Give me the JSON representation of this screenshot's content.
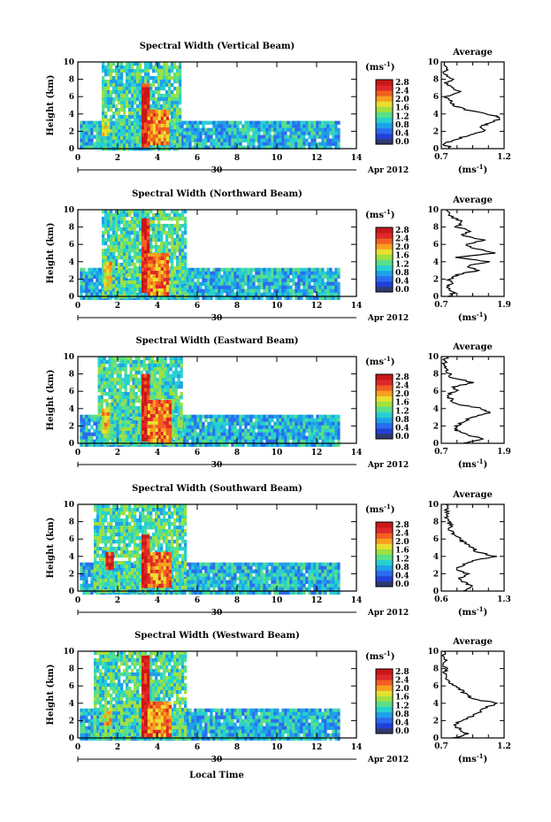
{
  "xlabel_bottom": "Local Time",
  "colorbar": {
    "unit": "(ms",
    "unit_exp": "-1",
    "tick_labels": [
      "2.8",
      "2.4",
      "2.0",
      "1.6",
      "1.2",
      "0.8",
      "0.4",
      "0.0"
    ],
    "colors": [
      "#303a6e",
      "#2240d8",
      "#2a6cf0",
      "#1fa0e8",
      "#28d0d0",
      "#58e08a",
      "#a0e040",
      "#e8e030",
      "#f8a020",
      "#f06020",
      "#e02828",
      "#c81818"
    ]
  },
  "chart_data": [
    {
      "type": "heatmap",
      "title": "Spectral Width (Vertical Beam)",
      "ylabel": "Height (km)",
      "ylim": [
        0,
        10
      ],
      "xlim": [
        0,
        14
      ],
      "x_ticks": [
        "0",
        "2",
        "4",
        "6",
        "8",
        "10",
        "12",
        "14"
      ],
      "y_ticks": [
        "0",
        "2",
        "4",
        "6",
        "8",
        "10"
      ],
      "date_day": "30",
      "date_label": "Apr 2012",
      "zlim": [
        0.0,
        3.0
      ],
      "features": [
        {
          "name": "boundary layer",
          "x": [
            0.1,
            13.1
          ],
          "y": [
            0,
            3.2
          ],
          "level": 1.0
        },
        {
          "name": "convective column",
          "x": [
            1.2,
            5.2
          ],
          "y": [
            0,
            10
          ],
          "level": 1.2
        },
        {
          "name": "core",
          "x": [
            3.2,
            3.5
          ],
          "y": [
            0.5,
            7.5
          ],
          "level": 2.8
        },
        {
          "name": "cell",
          "x": [
            3.5,
            4.5
          ],
          "y": [
            0.5,
            4.5
          ],
          "level": 2.2
        },
        {
          "name": "left cell",
          "x": [
            1.2,
            1.6
          ],
          "y": [
            1.5,
            3.5
          ],
          "level": 1.8
        }
      ],
      "average": {
        "label": "Average",
        "xlim": [
          0.7,
          1.2
        ],
        "x_ticks": [
          "0.7",
          "1.2"
        ],
        "xlabel": "(ms",
        "xlabel_exp": "-1",
        "profile": [
          [
            0.78,
            0.0
          ],
          [
            0.72,
            0.6
          ],
          [
            0.8,
            1.0
          ],
          [
            0.9,
            1.5
          ],
          [
            1.05,
            2.0
          ],
          [
            1.02,
            2.6
          ],
          [
            1.1,
            3.0
          ],
          [
            1.18,
            3.6
          ],
          [
            1.06,
            4.0
          ],
          [
            0.9,
            4.5
          ],
          [
            0.8,
            5.0
          ],
          [
            0.76,
            5.6
          ],
          [
            0.74,
            6.0
          ],
          [
            0.86,
            6.5
          ],
          [
            0.78,
            7.0
          ],
          [
            0.74,
            7.6
          ],
          [
            0.8,
            8.0
          ],
          [
            0.72,
            8.6
          ],
          [
            0.74,
            9.2
          ],
          [
            0.72,
            10.0
          ]
        ]
      }
    },
    {
      "type": "heatmap",
      "title": "Spectral Width (Northward Beam)",
      "ylabel": "Height (km)",
      "ylim": [
        0,
        10
      ],
      "xlim": [
        0,
        14
      ],
      "x_ticks": [
        "0",
        "2",
        "4",
        "6",
        "8",
        "10",
        "12",
        "14"
      ],
      "y_ticks": [
        "0",
        "2",
        "4",
        "6",
        "8",
        "10"
      ],
      "date_day": "30",
      "date_label": "Apr 2012",
      "zlim": [
        0.0,
        3.0
      ],
      "features": [
        {
          "name": "boundary layer",
          "x": [
            0.1,
            13.1
          ],
          "y": [
            0,
            3.3
          ],
          "level": 1.0
        },
        {
          "name": "convective column",
          "x": [
            1.2,
            5.4
          ],
          "y": [
            0,
            10
          ],
          "level": 1.3
        },
        {
          "name": "core",
          "x": [
            3.2,
            3.5
          ],
          "y": [
            0.5,
            9.0
          ],
          "level": 2.7
        },
        {
          "name": "cell",
          "x": [
            3.5,
            4.5
          ],
          "y": [
            0.5,
            5.0
          ],
          "level": 2.3
        },
        {
          "name": "left cell",
          "x": [
            1.3,
            1.7
          ],
          "y": [
            1.0,
            4.0
          ],
          "level": 1.9
        }
      ],
      "average": {
        "label": "Average",
        "xlim": [
          0.7,
          1.9
        ],
        "x_ticks": [
          "0.7",
          "1.9"
        ],
        "xlabel": "(ms",
        "xlabel_exp": "-1",
        "profile": [
          [
            0.85,
            0.0
          ],
          [
            0.95,
            0.5
          ],
          [
            0.8,
            1.0
          ],
          [
            0.9,
            1.5
          ],
          [
            0.85,
            2.0
          ],
          [
            1.0,
            2.5
          ],
          [
            1.4,
            3.0
          ],
          [
            1.2,
            3.5
          ],
          [
            1.6,
            4.0
          ],
          [
            1.0,
            4.5
          ],
          [
            1.7,
            5.0
          ],
          [
            1.3,
            5.6
          ],
          [
            1.2,
            6.0
          ],
          [
            1.5,
            6.5
          ],
          [
            1.1,
            7.0
          ],
          [
            1.25,
            7.6
          ],
          [
            1.0,
            8.0
          ],
          [
            1.1,
            8.6
          ],
          [
            0.9,
            9.2
          ],
          [
            0.8,
            10.0
          ]
        ]
      }
    },
    {
      "type": "heatmap",
      "title": "Spectral Width (Eastward Beam)",
      "ylabel": "Height (km)",
      "ylim": [
        0,
        10
      ],
      "xlim": [
        0,
        14
      ],
      "x_ticks": [
        "0",
        "2",
        "4",
        "6",
        "8",
        "10",
        "12",
        "14"
      ],
      "y_ticks": [
        "0",
        "2",
        "4",
        "6",
        "8",
        "10"
      ],
      "date_day": "30",
      "date_label": "Apr 2012",
      "zlim": [
        0.0,
        3.0
      ],
      "features": [
        {
          "name": "boundary layer",
          "x": [
            0.1,
            13.1
          ],
          "y": [
            0,
            3.3
          ],
          "level": 1.0
        },
        {
          "name": "convective column",
          "x": [
            1.0,
            5.2
          ],
          "y": [
            0,
            10
          ],
          "level": 1.3
        },
        {
          "name": "core",
          "x": [
            3.2,
            3.5
          ],
          "y": [
            0.5,
            8.0
          ],
          "level": 2.8
        },
        {
          "name": "cell",
          "x": [
            3.5,
            4.6
          ],
          "y": [
            0.5,
            5.0
          ],
          "level": 2.3
        },
        {
          "name": "left cell",
          "x": [
            1.2,
            1.6
          ],
          "y": [
            1.5,
            4.0
          ],
          "level": 1.9
        }
      ],
      "average": {
        "label": "Average",
        "xlim": [
          0.7,
          1.9
        ],
        "x_ticks": [
          "0.7",
          "1.9"
        ],
        "xlabel": "(ms",
        "xlabel_exp": "-1",
        "profile": [
          [
            1.1,
            0.0
          ],
          [
            1.5,
            0.5
          ],
          [
            1.2,
            1.0
          ],
          [
            1.0,
            1.5
          ],
          [
            1.0,
            2.0
          ],
          [
            1.1,
            2.5
          ],
          [
            1.3,
            3.0
          ],
          [
            1.6,
            3.5
          ],
          [
            1.5,
            4.0
          ],
          [
            1.0,
            4.5
          ],
          [
            0.9,
            5.0
          ],
          [
            0.8,
            5.6
          ],
          [
            1.0,
            6.0
          ],
          [
            0.9,
            6.5
          ],
          [
            1.3,
            7.0
          ],
          [
            0.9,
            7.6
          ],
          [
            0.85,
            8.0
          ],
          [
            0.8,
            8.6
          ],
          [
            0.75,
            9.2
          ],
          [
            0.8,
            10.0
          ]
        ]
      }
    },
    {
      "type": "heatmap",
      "title": "Spectral Width (Southward Beam)",
      "ylabel": "Height (km)",
      "ylim": [
        0,
        10
      ],
      "xlim": [
        0,
        14
      ],
      "x_ticks": [
        "0",
        "2",
        "4",
        "6",
        "8",
        "10",
        "12",
        "14"
      ],
      "y_ticks": [
        "0",
        "2",
        "4",
        "6",
        "8",
        "10"
      ],
      "date_day": "30",
      "date_label": "Apr 2012",
      "zlim": [
        0.0,
        3.0
      ],
      "features": [
        {
          "name": "boundary layer",
          "x": [
            0.1,
            13.1
          ],
          "y": [
            0,
            3.3
          ],
          "level": 1.0
        },
        {
          "name": "convective column",
          "x": [
            0.8,
            5.4
          ],
          "y": [
            0,
            10
          ],
          "level": 1.3
        },
        {
          "name": "core",
          "x": [
            3.2,
            3.5
          ],
          "y": [
            0.5,
            6.5
          ],
          "level": 2.8
        },
        {
          "name": "cell",
          "x": [
            3.5,
            4.6
          ],
          "y": [
            0.5,
            4.5
          ],
          "level": 2.3
        },
        {
          "name": "left cell",
          "x": [
            1.4,
            1.8
          ],
          "y": [
            2.5,
            4.5
          ],
          "level": 2.6
        }
      ],
      "average": {
        "label": "Average",
        "xlim": [
          0.6,
          1.3
        ],
        "x_ticks": [
          "0.6",
          "1.3"
        ],
        "xlabel": "(ms",
        "xlabel_exp": "-1",
        "profile": [
          [
            0.85,
            0.0
          ],
          [
            0.95,
            0.5
          ],
          [
            0.85,
            1.0
          ],
          [
            0.8,
            1.5
          ],
          [
            0.9,
            2.0
          ],
          [
            0.75,
            2.5
          ],
          [
            0.85,
            3.0
          ],
          [
            0.95,
            3.5
          ],
          [
            1.2,
            4.0
          ],
          [
            1.0,
            4.5
          ],
          [
            0.95,
            5.0
          ],
          [
            0.85,
            5.6
          ],
          [
            0.8,
            6.0
          ],
          [
            0.75,
            6.5
          ],
          [
            0.7,
            7.0
          ],
          [
            0.7,
            7.6
          ],
          [
            0.68,
            8.0
          ],
          [
            0.65,
            8.6
          ],
          [
            0.66,
            9.2
          ],
          [
            0.65,
            10.0
          ]
        ]
      }
    },
    {
      "type": "heatmap",
      "title": "Spectral Width (Westward Beam)",
      "ylabel": "Height (km)",
      "ylim": [
        0,
        10
      ],
      "xlim": [
        0,
        14
      ],
      "x_ticks": [
        "0",
        "2",
        "4",
        "6",
        "8",
        "10",
        "12",
        "14"
      ],
      "y_ticks": [
        "0",
        "2",
        "4",
        "6",
        "8",
        "10"
      ],
      "date_day": "30",
      "date_label": "Apr 2012",
      "zlim": [
        0.0,
        3.0
      ],
      "features": [
        {
          "name": "boundary layer",
          "x": [
            0.1,
            13.1
          ],
          "y": [
            0,
            3.4
          ],
          "level": 1.0
        },
        {
          "name": "convective column",
          "x": [
            0.8,
            5.4
          ],
          "y": [
            0,
            10
          ],
          "level": 1.3
        },
        {
          "name": "core",
          "x": [
            3.2,
            3.5
          ],
          "y": [
            0.5,
            9.5
          ],
          "level": 2.8
        },
        {
          "name": "cell",
          "x": [
            3.5,
            4.6
          ],
          "y": [
            0.5,
            4.2
          ],
          "level": 2.2
        },
        {
          "name": "left cell",
          "x": [
            1.3,
            1.7
          ],
          "y": [
            1.5,
            3.5
          ],
          "level": 1.9
        }
      ],
      "average": {
        "label": "Average",
        "xlim": [
          0.7,
          1.2
        ],
        "x_ticks": [
          "0.7",
          "1.2"
        ],
        "xlabel": "(ms",
        "xlabel_exp": "-1",
        "profile": [
          [
            0.8,
            0.0
          ],
          [
            0.9,
            0.5
          ],
          [
            0.85,
            1.0
          ],
          [
            0.8,
            1.5
          ],
          [
            0.85,
            2.0
          ],
          [
            0.95,
            2.5
          ],
          [
            1.0,
            3.0
          ],
          [
            1.05,
            3.5
          ],
          [
            1.15,
            4.0
          ],
          [
            0.95,
            4.5
          ],
          [
            0.9,
            5.0
          ],
          [
            0.85,
            5.6
          ],
          [
            0.8,
            6.0
          ],
          [
            0.76,
            6.5
          ],
          [
            0.74,
            7.0
          ],
          [
            0.72,
            7.6
          ],
          [
            0.74,
            8.0
          ],
          [
            0.72,
            8.6
          ],
          [
            0.73,
            9.2
          ],
          [
            0.72,
            10.0
          ]
        ]
      }
    }
  ]
}
